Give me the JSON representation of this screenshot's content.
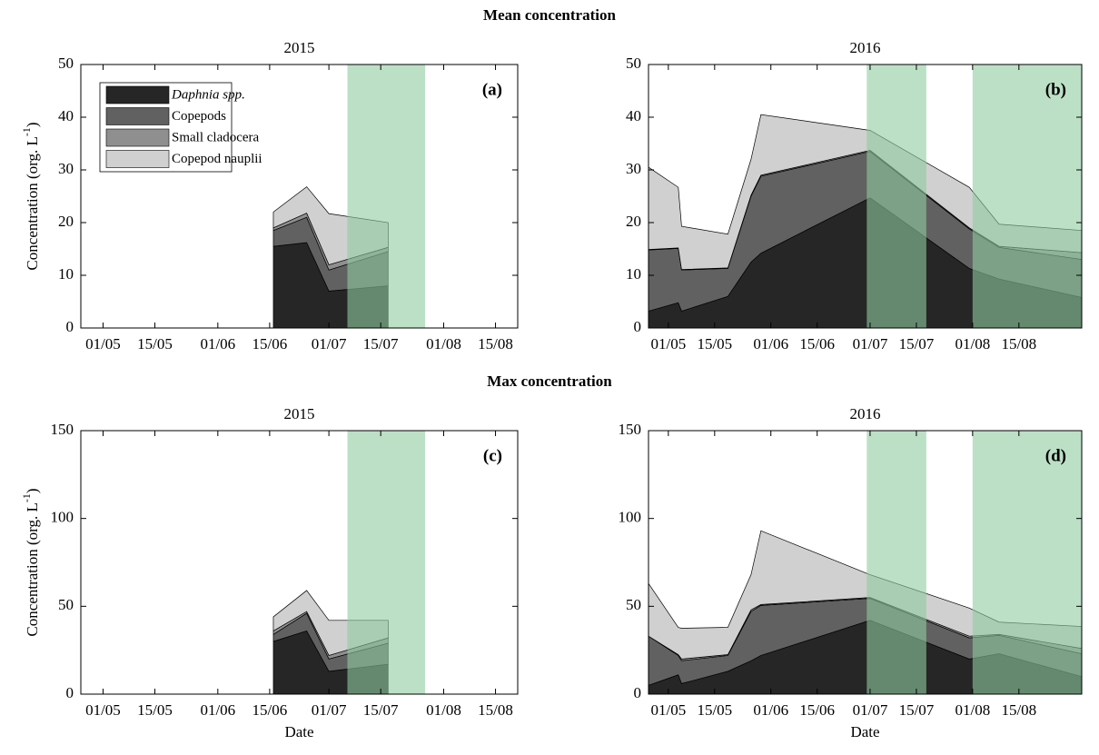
{
  "chart_data": [
    {
      "type": "stacked_area",
      "suptitle": "Mean concentration",
      "title": "2015",
      "panel_label": "(a)",
      "ylabel": [
        "Concentration (org. L",
        "-1",
        ")"
      ],
      "legend": "upper left",
      "x": [
        "16/06",
        "25/06",
        "01/07",
        "17/07"
      ],
      "series": [
        {
          "name": "Daphnia spp.",
          "color": "#262626",
          "values": [
            15.5,
            16.2,
            7,
            8
          ]
        },
        {
          "name": "Copepods",
          "color": "#616161",
          "values": [
            3,
            4.8,
            4,
            6.5
          ]
        },
        {
          "name": "Small cladocera",
          "color": "#8f8f8f",
          "values": [
            0.5,
            0.8,
            1,
            0.8
          ]
        },
        {
          "name": "Copepod nauplii",
          "color": "#d0d0d0",
          "values": [
            3,
            5,
            9.7,
            4.7
          ]
        }
      ],
      "shade": [
        [
          "06/07",
          "27/07"
        ]
      ],
      "shade_color": "#8fcca0",
      "xlim": [
        "25/04",
        "21/08"
      ],
      "xticks": [
        "01/05",
        "15/05",
        "01/06",
        "15/06",
        "01/07",
        "15/07",
        "01/08",
        "15/08"
      ],
      "ylim": [
        0,
        50
      ],
      "yticks": [
        0,
        10,
        20,
        30,
        40,
        50
      ]
    },
    {
      "type": "stacked_area",
      "title": "2016",
      "panel_label": "(b)",
      "x": [
        "25/04",
        "04/05",
        "05/05",
        "19/05",
        "26/05",
        "29/05",
        "01/07",
        "31/07",
        "09/08",
        "03/09"
      ],
      "series": [
        {
          "color": "#262626",
          "values": [
            3.2,
            4.8,
            3.2,
            6,
            12.5,
            14.2,
            24.7,
            11.3,
            9.3,
            5.8
          ]
        },
        {
          "color": "#616161",
          "values": [
            11.6,
            10.3,
            7.8,
            5.3,
            12.5,
            14.6,
            8.8,
            7.5,
            6,
            7.2
          ]
        },
        {
          "color": "#8f8f8f",
          "values": [
            0.1,
            0.1,
            0.1,
            0.1,
            0.2,
            0.2,
            0.2,
            0.2,
            0.2,
            1.3
          ]
        },
        {
          "color": "#d0d0d0",
          "values": [
            15.6,
            11.5,
            8.2,
            6.4,
            6.8,
            11.5,
            3.8,
            7.7,
            4.2,
            4.2
          ]
        }
      ],
      "shade": [
        [
          "30/06",
          "18/07"
        ],
        [
          "01/08",
          "03/09"
        ]
      ],
      "shade_color": "#8fcca0",
      "xlim": [
        "25/04",
        "03/09"
      ],
      "xticks": [
        "01/05",
        "15/05",
        "01/06",
        "15/06",
        "01/07",
        "15/07",
        "01/08",
        "15/08"
      ],
      "ylim": [
        0,
        50
      ],
      "yticks": [
        0,
        10,
        20,
        30,
        40,
        50
      ]
    },
    {
      "type": "stacked_area",
      "suptitle": "Max concentration",
      "title": "2015",
      "panel_label": "(c)",
      "ylabel": [
        "Concentration (org. L",
        "-1",
        ")"
      ],
      "xlabel": "Date",
      "x": [
        "16/06",
        "25/06",
        "01/07",
        "17/07"
      ],
      "series": [
        {
          "color": "#262626",
          "values": [
            30,
            36,
            13,
            17
          ]
        },
        {
          "color": "#616161",
          "values": [
            4,
            10,
            7,
            12
          ]
        },
        {
          "color": "#8f8f8f",
          "values": [
            2,
            1,
            2,
            3
          ]
        },
        {
          "color": "#d0d0d0",
          "values": [
            8,
            12,
            20,
            10
          ]
        }
      ],
      "shade": [
        [
          "06/07",
          "27/07"
        ]
      ],
      "shade_color": "#8fcca0",
      "xlim": [
        "25/04",
        "21/08"
      ],
      "xticks": [
        "01/05",
        "15/05",
        "01/06",
        "15/06",
        "01/07",
        "15/07",
        "01/08",
        "15/08"
      ],
      "ylim": [
        0,
        150
      ],
      "yticks": [
        0,
        50,
        100,
        150
      ]
    },
    {
      "type": "stacked_area",
      "title": "2016",
      "panel_label": "(d)",
      "xlabel": "Date",
      "x": [
        "25/04",
        "04/05",
        "05/05",
        "19/05",
        "26/05",
        "29/05",
        "01/07",
        "31/07",
        "09/08",
        "03/09"
      ],
      "series": [
        {
          "color": "#262626",
          "values": [
            5,
            11,
            6,
            13,
            19,
            22,
            42,
            20,
            23,
            10
          ]
        },
        {
          "color": "#616161",
          "values": [
            28,
            11,
            13,
            9,
            28,
            28.5,
            12.5,
            12,
            10.5,
            13
          ]
        },
        {
          "color": "#8f8f8f",
          "values": [
            0,
            0.5,
            1,
            0.5,
            1,
            0.5,
            0.5,
            1,
            0.5,
            3
          ]
        },
        {
          "color": "#d0d0d0",
          "values": [
            30,
            15.5,
            17.5,
            15.5,
            20,
            42,
            13,
            16,
            7,
            12.5
          ]
        }
      ],
      "shade": [
        [
          "30/06",
          "18/07"
        ],
        [
          "01/08",
          "03/09"
        ]
      ],
      "shade_color": "#8fcca0",
      "xlim": [
        "25/04",
        "03/09"
      ],
      "xticks": [
        "01/05",
        "15/05",
        "01/06",
        "15/06",
        "01/07",
        "15/07",
        "01/08",
        "15/08"
      ],
      "ylim": [
        0,
        150
      ],
      "yticks": [
        0,
        50,
        100,
        150
      ]
    }
  ]
}
